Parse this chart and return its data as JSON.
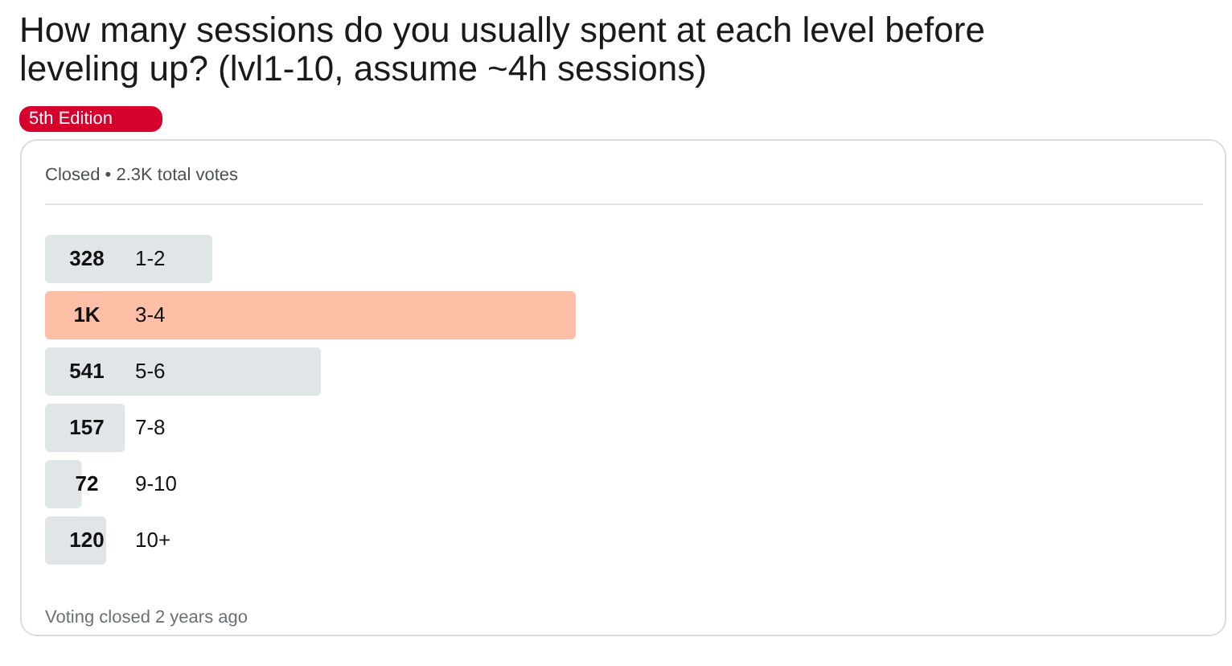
{
  "chart_data": {
    "type": "bar",
    "orientation": "horizontal",
    "title": "How many sessions do you usually spent at each level before leveling up? (lvl1-10, assume ~4h sessions)",
    "categories": [
      "1-2",
      "3-4",
      "5-6",
      "7-8",
      "9-10",
      "10+"
    ],
    "values": [
      328,
      1040,
      541,
      157,
      72,
      120
    ],
    "value_labels": [
      "328",
      "1K",
      "541",
      "157",
      "72",
      "120"
    ],
    "colors": [
      "#e0e5e8",
      "#ffbea6",
      "#e0e5e8",
      "#e0e5e8",
      "#e0e5e8",
      "#e0e5e8"
    ],
    "annotations": [
      "5th Edition",
      "Closed • 2.3K total votes",
      "Voting closed 2 years ago"
    ]
  }
}
